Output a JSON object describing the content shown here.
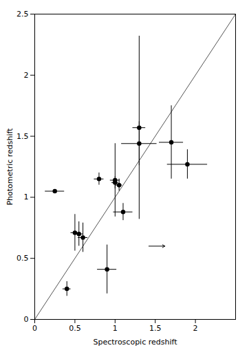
{
  "chart_data": {
    "type": "scatter",
    "xlabel": "Spectroscopic redshift",
    "ylabel": "Photometric redshift",
    "xlim": [
      0,
      2.5
    ],
    "ylim": [
      0,
      2.5
    ],
    "xticks": [
      0,
      0.5,
      1,
      1.5,
      2
    ],
    "yticks": [
      0,
      0.5,
      1,
      1.5,
      2,
      2.5
    ],
    "color": "#000000",
    "points": [
      {
        "x": 0.25,
        "y": 1.05,
        "xerr_lo": 0.12,
        "xerr_hi": 0.12,
        "yerr_lo": 0.0,
        "yerr_hi": 0.0
      },
      {
        "x": 0.4,
        "y": 0.25,
        "xerr_lo": 0.05,
        "xerr_hi": 0.05,
        "yerr_lo": 0.06,
        "yerr_hi": 0.06
      },
      {
        "x": 0.5,
        "y": 0.71,
        "xerr_lo": 0.05,
        "xerr_hi": 0.05,
        "yerr_lo": 0.15,
        "yerr_hi": 0.15
      },
      {
        "x": 0.55,
        "y": 0.7,
        "xerr_lo": 0.05,
        "xerr_hi": 0.05,
        "yerr_lo": 0.1,
        "yerr_hi": 0.1
      },
      {
        "x": 0.6,
        "y": 0.67,
        "xerr_lo": 0.06,
        "xerr_hi": 0.06,
        "yerr_lo": 0.12,
        "yerr_hi": 0.12
      },
      {
        "x": 0.8,
        "y": 1.15,
        "xerr_lo": 0.06,
        "xerr_hi": 0.06,
        "yerr_lo": 0.05,
        "yerr_hi": 0.05
      },
      {
        "x": 0.9,
        "y": 0.41,
        "xerr_lo": 0.12,
        "xerr_hi": 0.12,
        "yerr_lo": 0.2,
        "yerr_hi": 0.2
      },
      {
        "x": 1.0,
        "y": 1.14,
        "xerr_lo": 0.06,
        "xerr_hi": 0.06,
        "yerr_lo": 0.3,
        "yerr_hi": 0.3
      },
      {
        "x": 1.0,
        "y": 1.12,
        "xerr_lo": 0.04,
        "xerr_hi": 0.04,
        "yerr_lo": 0.05,
        "yerr_hi": 0.05
      },
      {
        "x": 1.05,
        "y": 1.1,
        "xerr_lo": 0.04,
        "xerr_hi": 0.04,
        "yerr_lo": 0.05,
        "yerr_hi": 0.05
      },
      {
        "x": 1.1,
        "y": 0.88,
        "xerr_lo": 0.12,
        "xerr_hi": 0.12,
        "yerr_lo": 0.07,
        "yerr_hi": 0.07
      },
      {
        "x": 1.3,
        "y": 1.57,
        "xerr_lo": 0.08,
        "xerr_hi": 0.08,
        "yerr_lo": 0.75,
        "yerr_hi": 0.75
      },
      {
        "x": 1.3,
        "y": 1.44,
        "xerr_lo": 0.22,
        "xerr_hi": 0.22,
        "yerr_lo": 0.18,
        "yerr_hi": 0.18
      },
      {
        "x": 1.7,
        "y": 1.45,
        "xerr_lo": 0.15,
        "xerr_hi": 0.15,
        "yerr_lo": 0.3,
        "yerr_hi": 0.3
      },
      {
        "x": 1.9,
        "y": 1.27,
        "xerr_lo": 0.25,
        "xerr_hi": 0.25,
        "yerr_lo": 0.12,
        "yerr_hi": 0.12
      }
    ],
    "line": {
      "x": [
        0,
        2.5
      ],
      "y": [
        0,
        2.5
      ],
      "color": "#555555"
    },
    "arrow": {
      "x": 1.42,
      "y": 0.6,
      "x_end": 1.62,
      "color": "#000000"
    }
  }
}
